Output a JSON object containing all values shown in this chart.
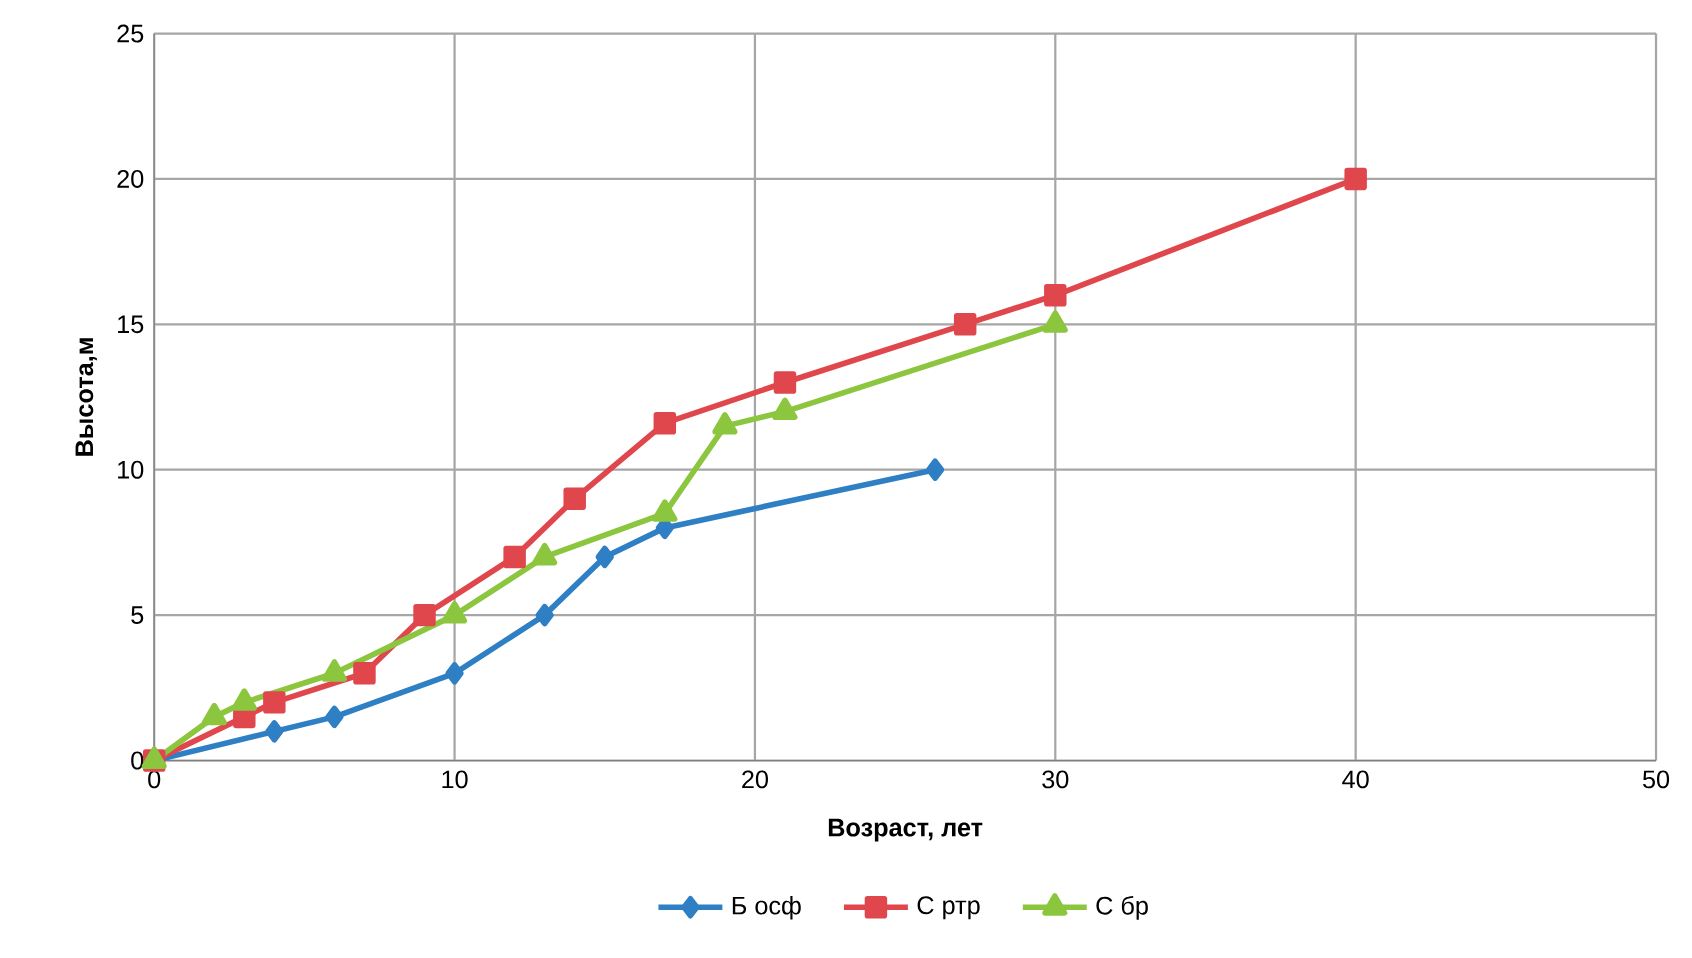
{
  "chart_data": {
    "type": "line",
    "xlabel": "Возраст,  лет",
    "ylabel": "Высота,м",
    "xlim": [
      0,
      50
    ],
    "xticks": [
      0,
      10,
      20,
      30,
      40,
      50
    ],
    "ylim": [
      0,
      25
    ],
    "yticks": [
      0,
      5,
      10,
      15,
      20,
      25
    ],
    "grid": true,
    "legend": "bottom",
    "series": [
      {
        "name": "Б осф",
        "color": "#2e7fc4",
        "marker": "diamond",
        "x": [
          0,
          4,
          6,
          10,
          13,
          15,
          17,
          26
        ],
        "values": [
          0,
          1,
          1.5,
          3,
          5,
          7,
          8,
          10
        ]
      },
      {
        "name": "С ртр",
        "color": "#e0474c",
        "marker": "square",
        "x": [
          0,
          3,
          4,
          7,
          9,
          12,
          14,
          17,
          21,
          27,
          30,
          40
        ],
        "values": [
          0,
          1.5,
          2,
          3,
          5,
          7,
          9,
          11.6,
          13,
          15,
          16,
          20
        ]
      },
      {
        "name": "С бр",
        "color": "#8cc63f",
        "marker": "triangle",
        "x": [
          0,
          2,
          3,
          6,
          10,
          13,
          17,
          19,
          21,
          30
        ],
        "values": [
          0,
          1.5,
          2,
          3,
          5,
          7,
          8.5,
          11.5,
          12,
          15
        ]
      }
    ]
  }
}
